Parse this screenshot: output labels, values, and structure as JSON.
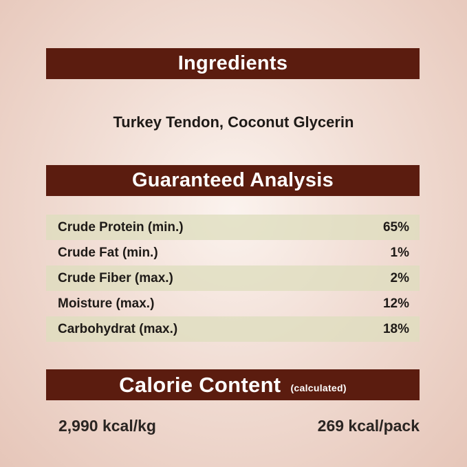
{
  "ingredients": {
    "title": "Ingredients",
    "text": "Turkey Tendon, Coconut Glycerin"
  },
  "analysis": {
    "title": "Guaranteed Analysis",
    "rows": [
      {
        "label": "Crude Protein (min.)",
        "value": "65%"
      },
      {
        "label": "Crude Fat (min.)",
        "value": "1%"
      },
      {
        "label": "Crude Fiber (max.)",
        "value": "2%"
      },
      {
        "label": "Moisture (max.)",
        "value": "12%"
      },
      {
        "label": "Carbohydrat (max.)",
        "value": "18%"
      }
    ]
  },
  "calorie": {
    "title": "Calorie Content",
    "subtitle": "(calculated)",
    "per_kg": "2,990 kcal/kg",
    "per_pack": "269 kcal/pack"
  },
  "colors": {
    "banner": "#5b1c0f",
    "row_stripe": "#dedebe",
    "background": "#f1ddd4"
  }
}
